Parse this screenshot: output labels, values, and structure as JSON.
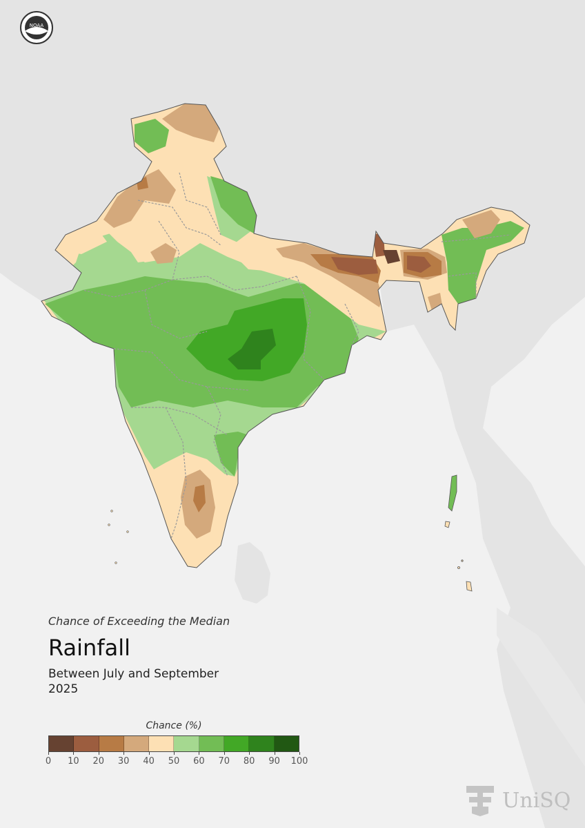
{
  "header": {
    "logo_text": "NOAA",
    "logo_icon": "noaa-seal-icon"
  },
  "map": {
    "region": "India",
    "colors": {
      "background": "#f1f1f1",
      "land_other": "#e3e3e3",
      "ocean": "#ffffff"
    }
  },
  "title": {
    "subtitle": "Chance of Exceeding the Median",
    "variable": "Rainfall",
    "period_line1": "Between July and September",
    "period_line2": "2025"
  },
  "legend": {
    "title": "Chance (%)",
    "bins": [
      {
        "range": "0-10",
        "color": "#664231"
      },
      {
        "range": "10-20",
        "color": "#9c5d3f"
      },
      {
        "range": "20-30",
        "color": "#b77b45"
      },
      {
        "range": "30-40",
        "color": "#d4a97c"
      },
      {
        "range": "40-50",
        "color": "#fde0b4"
      },
      {
        "range": "50-60",
        "color": "#a5d890"
      },
      {
        "range": "60-70",
        "color": "#72bd55"
      },
      {
        "range": "70-80",
        "color": "#42a826"
      },
      {
        "range": "80-90",
        "color": "#2f831d"
      },
      {
        "range": "90-100",
        "color": "#215813"
      }
    ],
    "tick_labels": [
      "0",
      "10",
      "20",
      "30",
      "40",
      "50",
      "60",
      "70",
      "80",
      "90",
      "100"
    ]
  },
  "footer": {
    "brand_text": "UniSQ",
    "brand_icon": "unisq-logo-icon"
  }
}
